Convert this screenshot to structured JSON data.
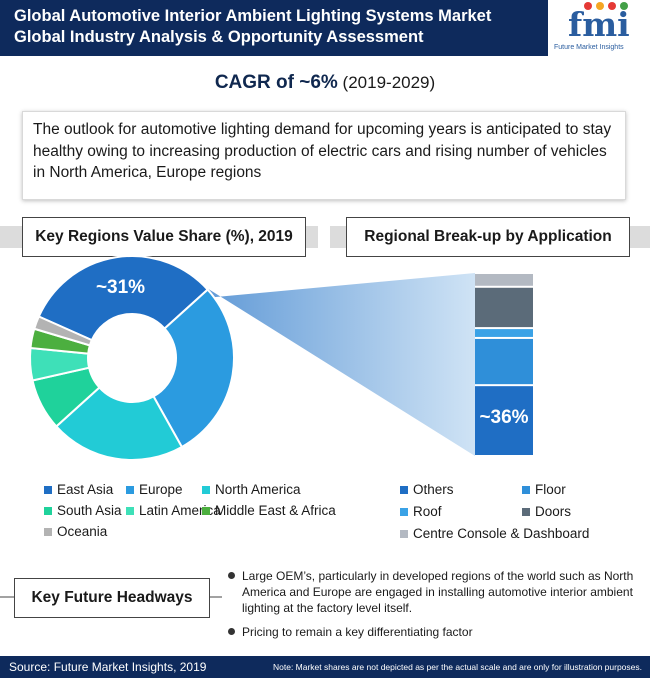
{
  "header": {
    "title_line1": "Global Automotive Interior Ambient Lighting Systems Market",
    "title_line2": "Global Industry Analysis & Opportunity Assessment",
    "logo_text": "fmi",
    "logo_tagline": "Future Market Insights"
  },
  "cagr": {
    "main": "CAGR of ~6%",
    "period": "(2019-2029)"
  },
  "outlook": "The outlook for automotive lighting demand for upcoming years is anticipated to stay healthy owing to increasing production of electric cars and rising number of vehicles in North America, Europe regions",
  "sections": {
    "regions_title": "Key Regions Value Share (%), 2019",
    "application_title": "Regional Break-up by Application"
  },
  "headways": {
    "title": "Key Future Headways",
    "bullets": [
      "Large OEM’s, particularly in developed regions of the world such as North America and Europe are engaged in installing automotive interior ambient lighting at the factory level itself.",
      "Pricing to remain a key differentiating factor"
    ]
  },
  "footer": {
    "source": "Source: Future Market Insights, 2019",
    "note": "Note: Market shares are not depicted as per the actual scale and are only for illustration purposes."
  },
  "chart_data": [
    {
      "type": "pie",
      "title": "Key Regions Value Share (%), 2019",
      "donut": true,
      "slices": [
        {
          "name": "East Asia",
          "value": 31,
          "color": "#1f6ec4",
          "label": "~31%"
        },
        {
          "name": "Europe",
          "value": 28,
          "color": "#2b9be0"
        },
        {
          "name": "North America",
          "value": 21,
          "color": "#22cbd6"
        },
        {
          "name": "South Asia",
          "value": 8,
          "color": "#1fd29b"
        },
        {
          "name": "Latin America",
          "value": 5,
          "color": "#3ee0b8"
        },
        {
          "name": "Middle East & Africa",
          "value": 3,
          "color": "#4caf3f"
        },
        {
          "name": "Oceania",
          "value": 2,
          "color": "#b3b3b3"
        }
      ],
      "legend_placement": "bottom"
    },
    {
      "type": "bar",
      "stacked": true,
      "title": "Regional Break-up by Application",
      "label": "~36%",
      "segments": [
        {
          "name": "Others",
          "value": 36,
          "color": "#1f6ec4"
        },
        {
          "name": "Floor",
          "value": 24,
          "color": "#2f8fd9"
        },
        {
          "name": "Roof",
          "value": 5,
          "color": "#3aa2e6"
        },
        {
          "name": "Doors",
          "value": 21,
          "color": "#5b6b79"
        },
        {
          "name": "Centre Console & Dashboard",
          "value": 7,
          "color": "#b3b9c2"
        }
      ],
      "legend_placement": "bottom"
    }
  ]
}
